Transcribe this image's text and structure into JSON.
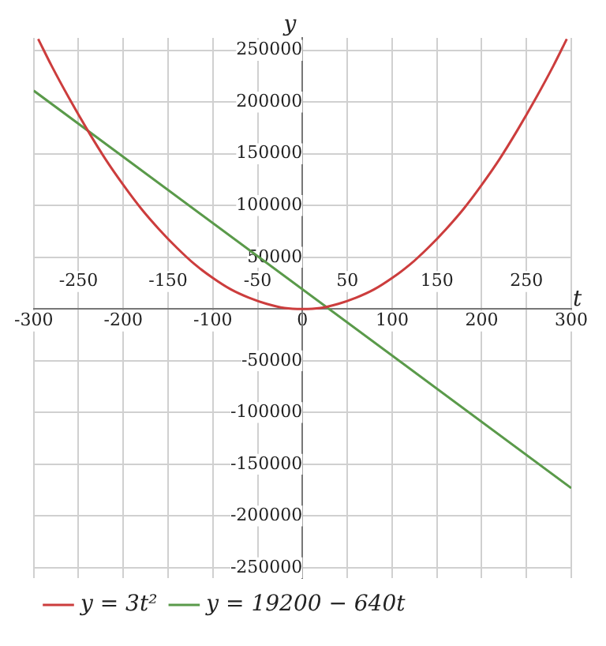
{
  "chart_data": {
    "type": "line",
    "xlabel": "t",
    "ylabel": "y",
    "xlim": [
      -300,
      300
    ],
    "ylim": [
      -260000,
      262000
    ],
    "xticks": [
      -300,
      -200,
      -100,
      0,
      100,
      200,
      300
    ],
    "x2lim": [
      -300,
      300
    ],
    "x2ticks": [
      -250,
      -150,
      -50,
      50,
      150,
      250
    ],
    "yticks": [
      -250000,
      -200000,
      -150000,
      -100000,
      -50000,
      {
        "value": 0,
        "label": null
      },
      50000,
      100000,
      150000,
      200000,
      250000
    ],
    "series": [
      {
        "name": "y = 3t²",
        "color": "#cc3d3d",
        "x": [
          -295,
          -280,
          -260,
          -240,
          -220,
          -200,
          -180,
          -160,
          -140,
          -120,
          -100,
          -80,
          -60,
          -40,
          -20,
          0,
          20,
          40,
          60,
          80,
          100,
          120,
          140,
          160,
          180,
          200,
          220,
          240,
          260,
          280,
          295
        ],
        "values": [
          261000,
          235000,
          203000,
          173000,
          145000,
          120000,
          97000,
          77000,
          59000,
          43000,
          30000,
          19000,
          11000,
          5000,
          1000,
          0,
          1000,
          5000,
          11000,
          19000,
          30000,
          43000,
          59000,
          77000,
          97000,
          120000,
          145000,
          173000,
          203000,
          235000,
          261000
        ]
      },
      {
        "name": "y = 19200 − 640t",
        "color": "#5a9a4a",
        "x": [
          -300,
          300
        ],
        "values": [
          211000,
          -173000
        ]
      }
    ],
    "grid": true,
    "legend": "bottom",
    "marker": "none",
    "line_style": "solid"
  }
}
